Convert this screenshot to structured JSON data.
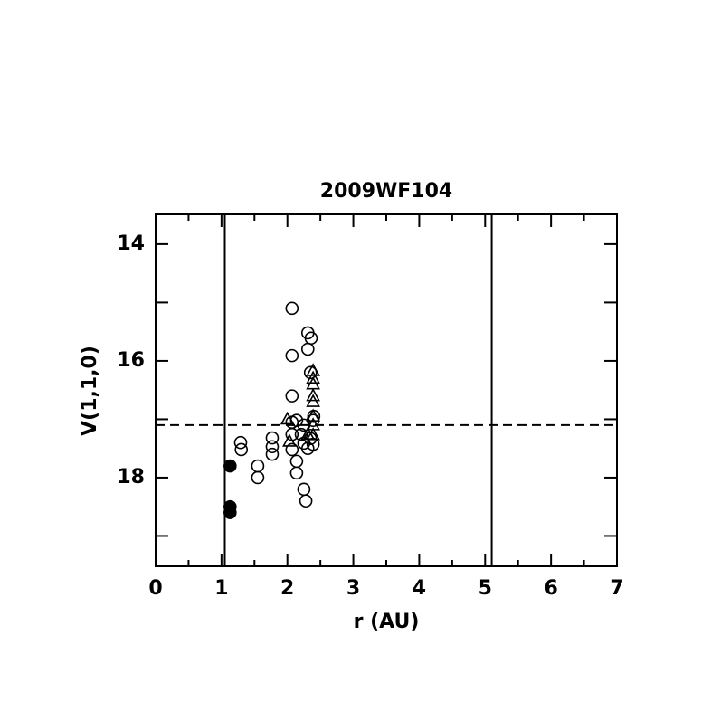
{
  "chart_data": {
    "type": "scatter",
    "title": "2009WF104",
    "x_label": "r (AU)",
    "y_label": "V(1,1,0)",
    "xlim": [
      0,
      7
    ],
    "xticks": [
      0,
      1,
      2,
      3,
      4,
      5,
      6,
      7
    ],
    "xminor": [
      0.5,
      1.5,
      2.5,
      3.5,
      4.5,
      5.5,
      6.5
    ],
    "ylim": [
      19.52,
      13.49
    ],
    "yticks": [
      14,
      16,
      18
    ],
    "yminor": [
      15,
      17,
      19
    ],
    "vlines": [
      1.05,
      5.1
    ],
    "hline": 17.1,
    "series": [
      {
        "marker": "circle-filled",
        "color": "#000000",
        "x": [
          1.13,
          1.13,
          1.13
        ],
        "values": [
          17.8,
          18.5,
          18.6
        ]
      },
      {
        "marker": "circle-open",
        "color": "#000000",
        "x": [
          1.29,
          1.3,
          1.55,
          1.55,
          1.77,
          1.77,
          1.77,
          2.07,
          2.07,
          2.07,
          2.07,
          2.07,
          2.07,
          2.14,
          2.14,
          2.14,
          2.21,
          2.25,
          2.28,
          2.31,
          2.31,
          2.36,
          2.35,
          2.31,
          2.35,
          2.39,
          2.39,
          2.4,
          2.25,
          2.25
        ],
        "values": [
          17.4,
          17.52,
          17.8,
          18.0,
          17.32,
          17.47,
          17.6,
          15.1,
          15.91,
          16.6,
          17.05,
          17.26,
          17.52,
          17.02,
          17.72,
          17.92,
          17.26,
          18.2,
          18.4,
          15.52,
          15.8,
          15.61,
          16.2,
          17.5,
          17.33,
          17.43,
          17.02,
          16.95,
          17.1,
          17.41
        ]
      },
      {
        "marker": "triangle-open",
        "color": "#000000",
        "x": [
          2.0,
          2.03,
          2.39,
          2.39,
          2.39,
          2.39,
          2.39,
          2.39,
          2.39,
          2.39,
          2.31
        ],
        "values": [
          17.0,
          17.38,
          16.17,
          16.3,
          16.4,
          16.6,
          16.7,
          16.95,
          17.1,
          17.27,
          17.26
        ]
      }
    ]
  }
}
